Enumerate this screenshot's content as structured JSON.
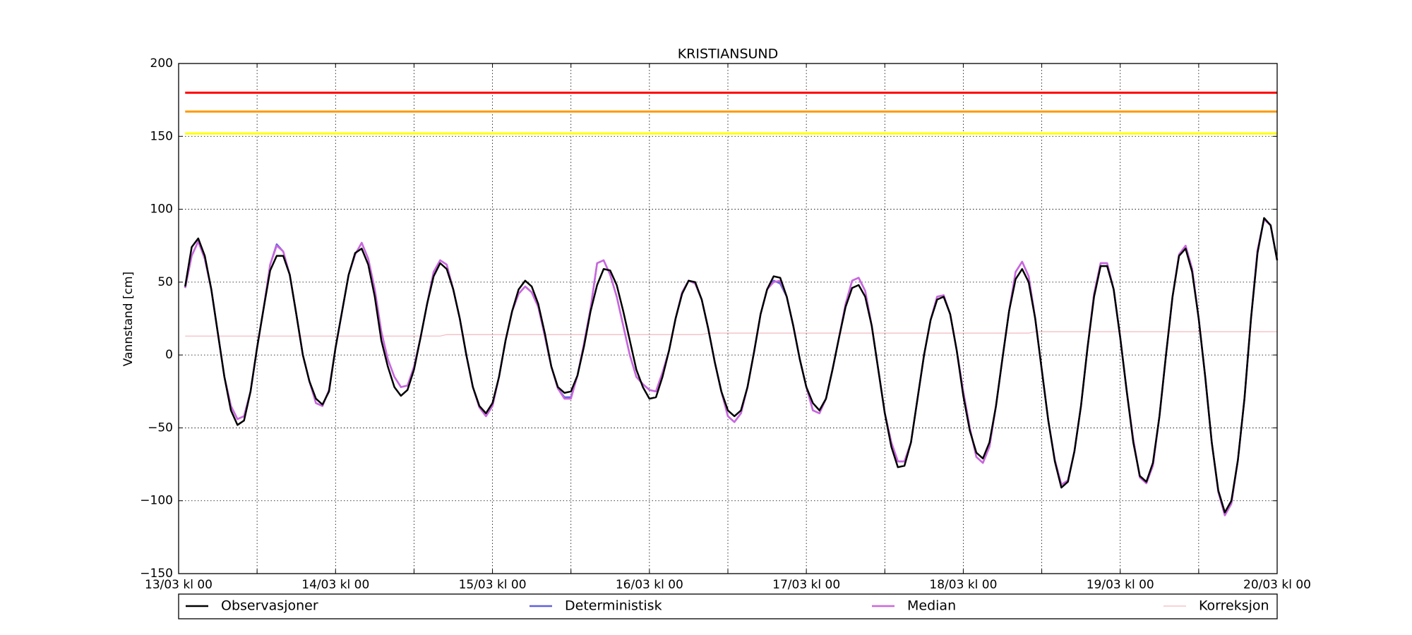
{
  "chart_data": {
    "type": "line",
    "title": "KRISTIANSUND",
    "ylabel": "Vannstand [cm]",
    "xlim": [
      0,
      168
    ],
    "xticks": [
      {
        "value": 0,
        "label": "13/03 kl 00"
      },
      {
        "value": 24,
        "label": "14/03 kl 00"
      },
      {
        "value": 48,
        "label": "15/03 kl 00"
      },
      {
        "value": 72,
        "label": "16/03 kl 00"
      },
      {
        "value": 96,
        "label": "17/03 kl 00"
      },
      {
        "value": 120,
        "label": "18/03 kl 00"
      },
      {
        "value": 144,
        "label": "19/03 kl 00"
      },
      {
        "value": 168,
        "label": "20/03 kl 00"
      }
    ],
    "xminorticks": [
      12,
      36,
      60,
      84,
      108,
      132,
      156
    ],
    "ylim": [
      -150,
      200
    ],
    "yticks": [
      {
        "value": -150,
        "label": "−150"
      },
      {
        "value": -100,
        "label": "−100"
      },
      {
        "value": -50,
        "label": "−50"
      },
      0,
      50,
      100,
      150,
      200
    ],
    "grid": true,
    "reference_lines": [
      {
        "value": 180,
        "color": "#ff0000"
      },
      {
        "value": 167,
        "color": "#ff9900"
      },
      {
        "value": 152,
        "color": "#ffff00"
      }
    ],
    "x": [
      1,
      2,
      3,
      4,
      5,
      6,
      7,
      8,
      9,
      10,
      11,
      12,
      13,
      14,
      15,
      16,
      17,
      18,
      19,
      20,
      21,
      22,
      23,
      24,
      25,
      26,
      27,
      28,
      29,
      30,
      31,
      32,
      33,
      34,
      35,
      36,
      37,
      38,
      39,
      40,
      41,
      42,
      43,
      44,
      45,
      46,
      47,
      48,
      49,
      50,
      51,
      52,
      53,
      54,
      55,
      56,
      57,
      58,
      59,
      60,
      61,
      62,
      63,
      64,
      65,
      66,
      67,
      68,
      69,
      70,
      71,
      72,
      73,
      74,
      75,
      76,
      77,
      78,
      79,
      80,
      81,
      82,
      83,
      84,
      85,
      86,
      87,
      88,
      89,
      90,
      91,
      92,
      93,
      94,
      95,
      96,
      97,
      98,
      99,
      100,
      101,
      102,
      103,
      104,
      105,
      106,
      107,
      108,
      109,
      110,
      111,
      112,
      113,
      114,
      115,
      116,
      117,
      118,
      119,
      120,
      121,
      122,
      123,
      124,
      125,
      126,
      127,
      128,
      129,
      130,
      131,
      132,
      133,
      134,
      135,
      136,
      137,
      138,
      139,
      140,
      141,
      142,
      143,
      144,
      145,
      146,
      147,
      148,
      149,
      150,
      151,
      152,
      153,
      154,
      155,
      156,
      157,
      158,
      159,
      160,
      161,
      162,
      163,
      164,
      165,
      166,
      167,
      168
    ],
    "series": [
      {
        "name": "Observasjoner",
        "color": "#000000",
        "values": [
          47,
          74,
          80,
          68,
          45,
          15,
          -15,
          -38,
          -48,
          -45,
          -25,
          5,
          32,
          58,
          68,
          68,
          55,
          28,
          0,
          -18,
          -30,
          -34,
          -25,
          5,
          30,
          55,
          70,
          73,
          62,
          40,
          10,
          -8,
          -22,
          -28,
          -24,
          -10,
          12,
          35,
          54,
          63,
          59,
          45,
          25,
          0,
          -22,
          -35,
          -40,
          -33,
          -15,
          10,
          30,
          45,
          51,
          47,
          35,
          15,
          -8,
          -22,
          -26,
          -25,
          -14,
          6,
          30,
          48,
          59,
          58,
          48,
          30,
          10,
          -10,
          -22,
          -30,
          -29,
          -15,
          3,
          25,
          42,
          51,
          50,
          38,
          18,
          -5,
          -25,
          -38,
          -42,
          -38,
          -22,
          2,
          28,
          45,
          54,
          53,
          40,
          20,
          -3,
          -22,
          -33,
          -38,
          -30,
          -10,
          12,
          33,
          46,
          48,
          40,
          20,
          -10,
          -40,
          -63,
          -77,
          -76,
          -60,
          -30,
          0,
          24,
          38,
          40,
          28,
          3,
          -28,
          -52,
          -67,
          -71,
          -60,
          -35,
          -2,
          30,
          52,
          59,
          50,
          25,
          -10,
          -45,
          -73,
          -91,
          -87,
          -66,
          -35,
          5,
          40,
          61,
          61,
          45,
          12,
          -25,
          -60,
          -83,
          -87,
          -74,
          -42,
          0,
          40,
          68,
          73,
          57,
          25,
          -15,
          -60,
          -93,
          -108,
          -100,
          -72,
          -30,
          25,
          70,
          94,
          89,
          65
        ]
      },
      {
        "name": "Deterministisk",
        "color": "#6060dd",
        "values": [
          46,
          68,
          78,
          66,
          45,
          15,
          -15,
          -35,
          -44,
          -42,
          -25,
          5,
          32,
          62,
          76,
          71,
          55,
          28,
          0,
          -18,
          -33,
          -35,
          -24,
          5,
          30,
          55,
          69,
          77,
          66,
          45,
          16,
          -3,
          -15,
          -22,
          -21,
          -8,
          12,
          35,
          57,
          65,
          62,
          45,
          25,
          0,
          -22,
          -36,
          -42,
          -35,
          -15,
          10,
          30,
          42,
          47,
          43,
          33,
          13,
          -8,
          -23,
          -29,
          -29,
          -14,
          8,
          32,
          63,
          65,
          55,
          40,
          20,
          0,
          -15,
          -20,
          -24,
          -25,
          -12,
          3,
          25,
          43,
          51,
          49,
          38,
          18,
          -5,
          -25,
          -42,
          -46,
          -40,
          -22,
          2,
          28,
          45,
          51,
          49,
          40,
          20,
          -3,
          -22,
          -38,
          -40,
          -30,
          -10,
          12,
          35,
          51,
          53,
          44,
          20,
          -10,
          -40,
          -60,
          -73,
          -73,
          -60,
          -30,
          0,
          24,
          40,
          41,
          28,
          3,
          -25,
          -50,
          -70,
          -74,
          -63,
          -35,
          -2,
          30,
          57,
          64,
          54,
          25,
          -10,
          -45,
          -72,
          -89,
          -86,
          -66,
          -35,
          5,
          42,
          63,
          63,
          45,
          12,
          -25,
          -58,
          -84,
          -88,
          -76,
          -42,
          0,
          40,
          69,
          75,
          59,
          25,
          -15,
          -60,
          -94,
          -110,
          -102,
          -72,
          -30,
          25,
          72,
          93,
          89,
          65
        ]
      },
      {
        "name": "Median",
        "color": "#cc66dd",
        "values": [
          46,
          68,
          78,
          66,
          45,
          15,
          -15,
          -35,
          -44,
          -42,
          -25,
          5,
          32,
          62,
          75,
          71,
          55,
          28,
          0,
          -18,
          -33,
          -35,
          -24,
          5,
          30,
          55,
          69,
          77,
          66,
          45,
          16,
          -3,
          -15,
          -22,
          -21,
          -8,
          12,
          35,
          57,
          65,
          62,
          45,
          25,
          0,
          -22,
          -36,
          -42,
          -35,
          -15,
          10,
          30,
          42,
          47,
          43,
          33,
          13,
          -8,
          -23,
          -30,
          -30,
          -14,
          8,
          32,
          63,
          65,
          55,
          40,
          20,
          0,
          -15,
          -20,
          -24,
          -25,
          -12,
          3,
          25,
          43,
          51,
          49,
          38,
          18,
          -5,
          -25,
          -42,
          -46,
          -40,
          -22,
          2,
          28,
          45,
          50,
          51,
          40,
          20,
          -3,
          -22,
          -38,
          -40,
          -30,
          -10,
          12,
          35,
          51,
          53,
          44,
          20,
          -10,
          -40,
          -60,
          -73,
          -73,
          -60,
          -30,
          0,
          24,
          40,
          41,
          28,
          3,
          -25,
          -50,
          -70,
          -74,
          -63,
          -35,
          -2,
          30,
          57,
          64,
          54,
          25,
          -10,
          -45,
          -72,
          -89,
          -86,
          -66,
          -35,
          5,
          42,
          63,
          63,
          45,
          12,
          -25,
          -58,
          -84,
          -88,
          -76,
          -42,
          0,
          40,
          69,
          75,
          59,
          25,
          -15,
          -60,
          -94,
          -110,
          -102,
          -72,
          -30,
          25,
          72,
          93,
          89,
          65
        ]
      },
      {
        "name": "Korreksjon",
        "color": "#f4b8c0",
        "values": [
          13,
          13,
          13,
          13,
          13,
          13,
          13,
          13,
          13,
          13,
          13,
          13,
          13,
          13,
          13,
          13,
          13,
          13,
          13,
          13,
          13,
          13,
          13,
          13,
          13,
          13,
          13,
          13,
          13,
          13,
          13,
          13,
          13,
          13,
          13,
          13,
          13,
          13,
          13,
          13,
          14,
          14,
          14,
          14,
          14,
          14,
          14,
          14,
          14,
          14,
          14,
          14,
          14,
          14,
          14,
          14,
          14,
          14,
          14,
          14,
          14,
          14,
          14,
          14,
          14,
          14,
          14,
          14,
          14,
          14,
          14,
          14,
          14,
          14,
          14,
          14,
          14,
          14,
          14,
          14,
          15,
          15,
          15,
          15,
          15,
          15,
          15,
          15,
          15,
          15,
          15,
          15,
          15,
          15,
          15,
          15,
          15,
          15,
          15,
          15,
          15,
          15,
          15,
          15,
          15,
          15,
          15,
          15,
          15,
          15,
          15,
          15,
          15,
          15,
          15,
          15,
          15,
          15,
          15,
          15,
          15,
          15,
          15,
          15,
          15,
          15,
          15,
          15,
          15,
          15,
          16,
          16,
          16,
          16,
          16,
          16,
          16,
          16,
          16,
          16,
          16,
          16,
          16,
          16,
          16,
          16,
          16,
          16,
          16,
          16,
          16,
          16,
          16,
          16,
          16,
          16,
          16,
          16,
          16,
          16,
          16,
          16,
          16,
          16,
          16,
          16,
          16,
          16
        ]
      }
    ]
  }
}
